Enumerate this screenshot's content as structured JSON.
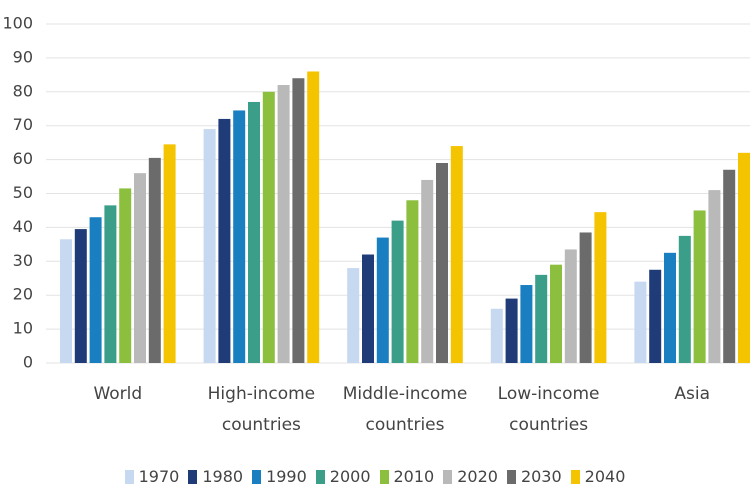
{
  "chart_data": {
    "type": "bar",
    "categories": [
      "World",
      "High-income countries",
      "Middle-income countries",
      "Low-income countries",
      "Asia"
    ],
    "series": [
      {
        "name": "1970",
        "color": "#c6d9f0",
        "values": [
          36.5,
          69,
          28,
          16,
          24
        ]
      },
      {
        "name": "1980",
        "color": "#1f3c78",
        "values": [
          39.5,
          72,
          32,
          19,
          27.5
        ]
      },
      {
        "name": "1990",
        "color": "#1a7fc1",
        "values": [
          43,
          74.5,
          37,
          23,
          32.5
        ]
      },
      {
        "name": "2000",
        "color": "#3a9e88",
        "values": [
          46.5,
          77,
          42,
          26,
          37.5
        ]
      },
      {
        "name": "2010",
        "color": "#8dbf3f",
        "values": [
          51.5,
          80,
          48,
          29,
          45
        ]
      },
      {
        "name": "2020",
        "color": "#b9b9b9",
        "values": [
          56,
          82,
          54,
          33.5,
          51
        ]
      },
      {
        "name": "2030",
        "color": "#6b6b6b",
        "values": [
          60.5,
          84,
          59,
          38.5,
          57
        ]
      },
      {
        "name": "2040",
        "color": "#f5c400",
        "values": [
          64.5,
          86,
          64,
          44.5,
          62
        ]
      }
    ],
    "ylim": [
      0,
      100
    ],
    "yticks": [
      0,
      10,
      20,
      30,
      40,
      50,
      60,
      70,
      80,
      90,
      100
    ],
    "grid": true,
    "legend": "bottom"
  }
}
